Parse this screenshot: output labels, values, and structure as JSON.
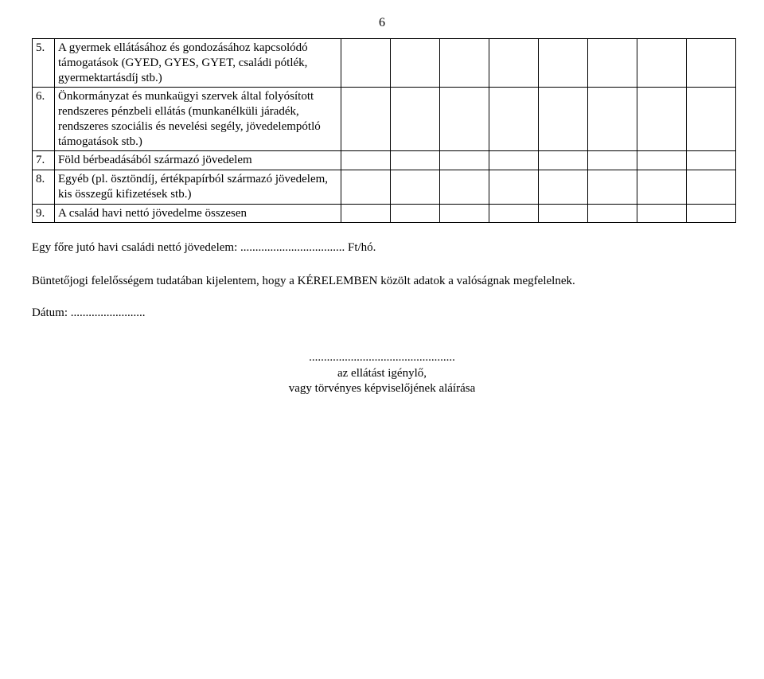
{
  "page_number": "6",
  "table_rows": [
    {
      "num": "5.",
      "desc": " A gyermek ellátásához és gondozásához kapcsolódó támogatások (GYED, GYES, GYET, családi pótlék, gyermektartásdíj stb.)"
    },
    {
      "num": "6.",
      "desc": " Önkormányzat és munkaügyi szervek által folyósított rendszeres pénzbeli ellátás (munkanélküli járadék, rendszeres szociális és nevelési segély, jövedelempótló támogatások stb.)"
    },
    {
      "num": "7.",
      "desc": " Föld bérbeadásából származó jövedelem"
    },
    {
      "num": "8.",
      "desc": " Egyéb (pl. ösztöndíj, értékpapírból származó jövedelem, kis összegű kifizetések stb.)"
    },
    {
      "num": "9.",
      "desc": " A család havi nettó jövedelme összesen"
    }
  ],
  "income_line": "Egy főre jutó havi családi nettó jövedelem: ................................... Ft/hó.",
  "declaration": "Büntetőjogi felelősségem tudatában kijelentem, hogy a KÉRELEMBEN közölt adatok a valóságnak megfelelnek.",
  "date_label": "Dátum: .........................",
  "signature_dots": ".................................................",
  "signature_line1": "az ellátást igénylő,",
  "signature_line2": "vagy törvényes képviselőjének aláírása"
}
